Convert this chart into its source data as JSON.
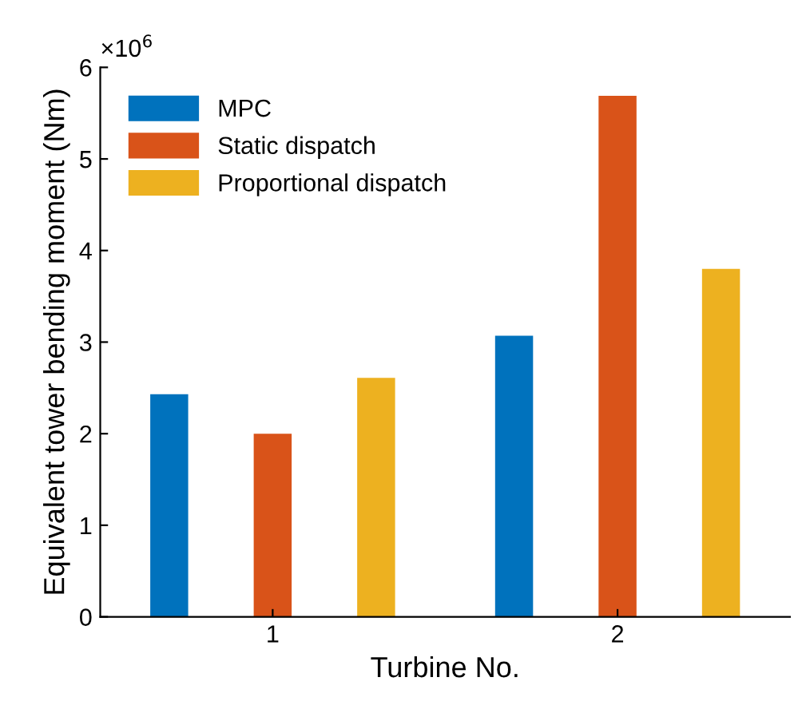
{
  "chart_data": {
    "type": "bar",
    "xlabel": "Turbine No.",
    "ylabel": "Equivalent tower bending moment (Nm)",
    "categories": [
      "1",
      "2"
    ],
    "series": [
      {
        "name": "MPC",
        "color": "#0072bd",
        "values": [
          2.43,
          3.07
        ]
      },
      {
        "name": "Static dispatch",
        "color": "#d95319",
        "values": [
          2.0,
          5.69
        ]
      },
      {
        "name": "Proportional dispatch",
        "color": "#edb120",
        "values": [
          2.61,
          3.8
        ]
      }
    ],
    "ylim": [
      0,
      6
    ],
    "yticks": [
      0,
      1,
      2,
      3,
      4,
      5,
      6
    ],
    "annotations": [
      "×10$^{6}$"
    ],
    "legend": "top left",
    "grid": false
  }
}
